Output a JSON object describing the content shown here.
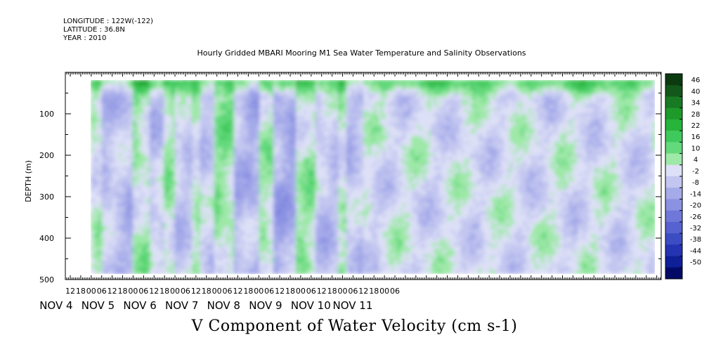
{
  "header": {
    "longitude": "LONGITUDE : 122W(-122)",
    "latitude": "LATITUDE : 36.8N",
    "year": "YEAR : 2010"
  },
  "chart_data": {
    "type": "heatmap",
    "title": "Hourly Gridded MBARI Mooring M1 Sea Water Temperature and Salinity Observations",
    "xlabel": "V Component of Water Velocity (cm s-1)",
    "ylabel": "DEPTH (m)",
    "y_axis": {
      "range": [
        0,
        500
      ],
      "inverted": true,
      "ticks": [
        100,
        200,
        300,
        400,
        500
      ],
      "units": "m"
    },
    "x_axis": {
      "hour_ticks": [
        "12",
        "18",
        "00",
        "06",
        "12",
        "18",
        "00",
        "06",
        "12",
        "18",
        "00",
        "06",
        "12",
        "18",
        "00",
        "06",
        "12",
        "18",
        "00",
        "06",
        "12",
        "18",
        "00",
        "06",
        "12",
        "18",
        "00",
        "06",
        "12",
        "18",
        "00",
        "06"
      ],
      "first_hour_tick": "Nov 4 2010 12:00",
      "day_labels": [
        "NOV 4",
        "NOV 5",
        "NOV 6",
        "NOV 7",
        "NOV 8",
        "NOV 9",
        "NOV 10",
        "NOV 11"
      ]
    },
    "data_extent": {
      "start": "Nov 4 2010 ~18:00",
      "end": "Nov 11 2010 ~12:00",
      "depth_min": 20,
      "depth_max": 485
    },
    "colorbar": {
      "levels": [
        46,
        40,
        34,
        28,
        22,
        16,
        10,
        4,
        -2,
        -8,
        -14,
        -20,
        -26,
        -32,
        -38,
        -44,
        -50
      ],
      "colors": [
        "#0c3a10",
        "#13571a",
        "#187a22",
        "#1e9a2a",
        "#27b43a",
        "#3fc95c",
        "#64d97c",
        "#9ee8a8",
        "#dde0f6",
        "#c2c6f0",
        "#a5aae9",
        "#8c92e2",
        "#6f78d9",
        "#5662cf",
        "#3c4cc3",
        "#2434b3",
        "#0f1f98",
        "#030a66"
      ],
      "dominant_bands": [
        {
          "start": "Nov 4 18:00",
          "end": "Nov 5 00:00",
          "sign": "negative",
          "strength": 0.35
        },
        {
          "start": "Nov 5 00:00",
          "end": "Nov 5 06:00",
          "sign": "positive",
          "strength": 0.25
        },
        {
          "start": "Nov 5 06:00",
          "end": "Nov 5 18:00",
          "sign": "negative",
          "strength": 0.4
        },
        {
          "start": "Nov 5 18:00",
          "end": "Nov 6 00:00",
          "sign": "negative",
          "strength": 0.5
        },
        {
          "start": "Nov 6 00:00",
          "end": "Nov 6 09:00",
          "sign": "positive",
          "strength": 0.4
        },
        {
          "start": "Nov 6 09:00",
          "end": "Nov 6 18:00",
          "sign": "negative",
          "strength": 0.3
        },
        {
          "start": "Nov 6 18:00",
          "end": "Nov 7 00:00",
          "sign": "positive",
          "strength": 0.35
        },
        {
          "start": "Nov 7 00:00",
          "end": "Nov 7 09:00",
          "sign": "negative",
          "strength": 0.25
        },
        {
          "start": "Nov 7 09:00",
          "end": "Nov 7 15:00",
          "sign": "positive",
          "strength": 0.3
        },
        {
          "start": "Nov 7 15:00",
          "end": "Nov 7 22:00",
          "sign": "negative",
          "strength": 0.3
        },
        {
          "start": "Nov 7 22:00",
          "end": "Nov 8 10:00",
          "sign": "positive",
          "strength": 0.5
        },
        {
          "start": "Nov 8 10:00",
          "end": "Nov 8 18:00",
          "sign": "negative",
          "strength": 0.45
        },
        {
          "start": "Nov 8 18:00",
          "end": "Nov 9 00:00",
          "sign": "negative",
          "strength": 0.6
        },
        {
          "start": "Nov 9 00:00",
          "end": "Nov 9 09:00",
          "sign": "positive",
          "strength": 0.3
        },
        {
          "start": "Nov 9 09:00",
          "end": "Nov 9 22:00",
          "sign": "negative",
          "strength": 0.7
        },
        {
          "start": "Nov 9 22:00",
          "end": "Nov 10 09:00",
          "sign": "positive",
          "strength": 0.4
        },
        {
          "start": "Nov 10 09:00",
          "end": "Nov 10 15:00",
          "sign": "negative",
          "strength": 0.35
        },
        {
          "start": "Nov 10 15:00",
          "end": "Nov 10 21:00",
          "sign": "negative",
          "strength": 0.3
        },
        {
          "start": "Nov 10 21:00",
          "end": "Nov 11 03:00",
          "sign": "positive",
          "strength": 0.3
        },
        {
          "start": "Nov 11 03:00",
          "end": "Nov 11 12:00",
          "sign": "negative",
          "strength": 0.4
        }
      ],
      "surface_layer": {
        "depth_range": [
          20,
          60
        ],
        "sign": "positive",
        "strength": 0.6
      }
    }
  }
}
